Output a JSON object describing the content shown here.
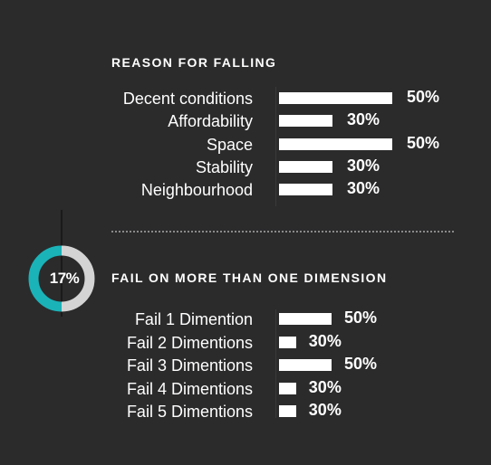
{
  "colors": {
    "background": "#2b2b2c",
    "bar": "#ffffff",
    "donut_primary": "#1ab3b8",
    "donut_secondary": "#d4d4d4",
    "text": "#ffffff"
  },
  "donut": {
    "label": "17%"
  },
  "chart_data": [
    {
      "type": "bar",
      "orientation": "horizontal",
      "title": "REASON FOR FALLING",
      "categories": [
        "Decent conditions",
        "Affordability",
        "Space",
        "Stability",
        "Neighbourhood"
      ],
      "values": [
        50,
        30,
        50,
        30,
        30
      ],
      "value_labels": [
        "50%",
        "30%",
        "50%",
        "30%",
        "30%"
      ]
    },
    {
      "type": "bar",
      "orientation": "horizontal",
      "title": "FAIL ON MORE THAN ONE DIMENSION",
      "categories": [
        "Fail 1 Dimention",
        "Fail 2 Dimentions",
        "Fail 3 Dimentions",
        "Fail 4 Dimentions",
        "Fail 5 Dimentions"
      ],
      "values": [
        50,
        30,
        50,
        30,
        30
      ],
      "value_labels": [
        "50%",
        "30%",
        "50%",
        "30%",
        "30%"
      ]
    }
  ]
}
